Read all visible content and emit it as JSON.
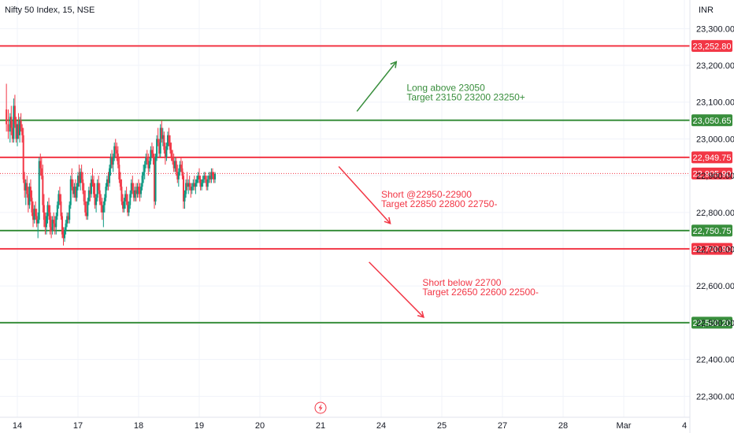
{
  "header": {
    "title": "Nifty 50 Index, 15, NSE",
    "currency": "INR"
  },
  "colors": {
    "up": "#089981",
    "down": "#f23645",
    "support": "#388e3c",
    "resistance": "#f23645",
    "background": "#ffffff",
    "grid": "#f0f3fa"
  },
  "event_icon": "lightning-bolt-icon",
  "chart_data": {
    "type": "candlestick",
    "title": "Nifty 50 Index, 15, NSE",
    "currency": "INR",
    "ylim": [
      22275,
      23335
    ],
    "y_ticks": [
      22300,
      22400,
      22500,
      22600,
      22700,
      22800,
      22900,
      23000,
      23100,
      23200,
      23300
    ],
    "y_tick_labels": [
      "22,300.00",
      "22,400.00",
      "22,500.00",
      "22,600.00",
      "22,700.00",
      "22,800.00",
      "22,900.00",
      "23,000.00",
      "23,100.00",
      "23,200.00",
      "23,300.00"
    ],
    "x_ticks": [
      {
        "label": "14",
        "pos": 0
      },
      {
        "label": "17",
        "pos": 1
      },
      {
        "label": "18",
        "pos": 2
      },
      {
        "label": "19",
        "pos": 3
      },
      {
        "label": "20",
        "pos": 4
      },
      {
        "label": "21",
        "pos": 5
      },
      {
        "label": "24",
        "pos": 6
      },
      {
        "label": "25",
        "pos": 7
      },
      {
        "label": "27",
        "pos": 8
      },
      {
        "label": "28",
        "pos": 9
      },
      {
        "label": "Mar",
        "pos": 10
      },
      {
        "label": "4",
        "pos": 11
      }
    ],
    "horizontal_levels": [
      {
        "value": 23252.8,
        "label": "23,252.80",
        "kind": "resistance"
      },
      {
        "value": 23050.65,
        "label": "23,050.65",
        "kind": "support"
      },
      {
        "value": 22949.75,
        "label": "22,949.75",
        "kind": "resistance"
      },
      {
        "value": 22750.75,
        "label": "22,750.75",
        "kind": "support"
      },
      {
        "value": 22700.9,
        "label": "22,700.90",
        "kind": "resistance"
      },
      {
        "value": 22500.2,
        "label": "22,500.20",
        "kind": "support"
      }
    ],
    "last_price": {
      "value": 22905.9,
      "label": "22,905.90"
    },
    "annotations": [
      {
        "lines": [
          "Long above 23050",
          "Target 23150 23200 23250+"
        ],
        "kind": "long",
        "arrow": {
          "from": [
            5.6,
            23075
          ],
          "to": [
            6.25,
            23210
          ]
        },
        "text_at": [
          6.42,
          23130
        ]
      },
      {
        "lines": [
          "Short @22950-22900",
          "Target 22850 22800 22750-"
        ],
        "kind": "short",
        "arrow": {
          "from": [
            5.3,
            22925
          ],
          "to": [
            6.15,
            22770
          ]
        },
        "text_at": [
          6.0,
          22840
        ]
      },
      {
        "lines": [
          "Short below 22700",
          "Target 22650 22600 22500-"
        ],
        "kind": "short",
        "arrow": {
          "from": [
            5.8,
            22665
          ],
          "to": [
            6.7,
            22515
          ]
        },
        "text_at": [
          6.68,
          22600
        ]
      }
    ],
    "candles": [
      [
        -0.18,
        23080,
        23150,
        23020,
        23040
      ],
      [
        -0.15,
        23040,
        23080,
        23000,
        23020
      ],
      [
        -0.12,
        23020,
        23070,
        22990,
        23060
      ],
      [
        -0.1,
        23060,
        23090,
        23010,
        23030
      ],
      [
        -0.08,
        23030,
        23050,
        22990,
        23000
      ],
      [
        -0.06,
        23000,
        23110,
        22990,
        23090
      ],
      [
        -0.04,
        23090,
        23120,
        23030,
        23040
      ],
      [
        -0.02,
        23040,
        23060,
        22990,
        23000
      ],
      [
        0.0,
        23000,
        23050,
        22980,
        23040
      ],
      [
        0.02,
        23040,
        23070,
        23000,
        23010
      ],
      [
        0.04,
        23010,
        23060,
        22990,
        23050
      ],
      [
        0.06,
        23050,
        23070,
        23020,
        23030
      ],
      [
        0.08,
        23030,
        23040,
        22990,
        23010
      ],
      [
        0.1,
        23010,
        23030,
        22880,
        22890
      ],
      [
        0.12,
        22890,
        22910,
        22840,
        22860
      ],
      [
        0.14,
        22860,
        22890,
        22820,
        22880
      ],
      [
        0.16,
        22880,
        22900,
        22840,
        22850
      ],
      [
        0.18,
        22850,
        22870,
        22800,
        22820
      ],
      [
        0.2,
        22820,
        22880,
        22810,
        22870
      ],
      [
        0.22,
        22870,
        22890,
        22830,
        22840
      ],
      [
        0.24,
        22840,
        22860,
        22790,
        22800
      ],
      [
        0.26,
        22800,
        22830,
        22760,
        22780
      ],
      [
        0.28,
        22780,
        22820,
        22770,
        22810
      ],
      [
        0.3,
        22810,
        22830,
        22780,
        22790
      ],
      [
        0.32,
        22790,
        22810,
        22760,
        22770
      ],
      [
        0.34,
        22770,
        22800,
        22730,
        22780
      ],
      [
        0.36,
        22780,
        22950,
        22770,
        22940
      ],
      [
        0.38,
        22940,
        22960,
        22900,
        22920
      ],
      [
        0.4,
        22920,
        22950,
        22890,
        22900
      ],
      [
        0.42,
        22900,
        22930,
        22800,
        22820
      ],
      [
        0.44,
        22820,
        22850,
        22760,
        22780
      ],
      [
        0.46,
        22780,
        22800,
        22740,
        22760
      ],
      [
        0.48,
        22760,
        22800,
        22740,
        22790
      ],
      [
        0.5,
        22790,
        22830,
        22770,
        22820
      ],
      [
        0.52,
        22820,
        22840,
        22780,
        22800
      ],
      [
        0.54,
        22800,
        22820,
        22740,
        22760
      ],
      [
        0.56,
        22760,
        22790,
        22730,
        22750
      ],
      [
        0.58,
        22750,
        22790,
        22740,
        22780
      ],
      [
        0.6,
        22780,
        22800,
        22750,
        22770
      ],
      [
        0.62,
        22770,
        22790,
        22740,
        22760
      ],
      [
        0.64,
        22760,
        22800,
        22740,
        22790
      ],
      [
        0.66,
        22790,
        22830,
        22780,
        22820
      ],
      [
        0.68,
        22820,
        22860,
        22810,
        22850
      ],
      [
        0.7,
        22850,
        22870,
        22820,
        22830
      ],
      [
        0.72,
        22830,
        22850,
        22780,
        22790
      ],
      [
        0.74,
        22790,
        22800,
        22730,
        22740
      ],
      [
        0.76,
        22740,
        22760,
        22710,
        22730
      ],
      [
        0.78,
        22730,
        22760,
        22720,
        22750
      ],
      [
        0.8,
        22750,
        22780,
        22740,
        22770
      ],
      [
        0.82,
        22770,
        22800,
        22760,
        22790
      ],
      [
        0.84,
        22790,
        22800,
        22770,
        22780
      ],
      [
        0.86,
        22780,
        22830,
        22770,
        22820
      ],
      [
        0.88,
        22820,
        22900,
        22810,
        22890
      ],
      [
        0.9,
        22890,
        22920,
        22860,
        22870
      ],
      [
        0.92,
        22870,
        22890,
        22840,
        22850
      ],
      [
        0.94,
        22850,
        22880,
        22840,
        22870
      ],
      [
        0.96,
        22870,
        22890,
        22830,
        22840
      ],
      [
        0.98,
        22840,
        22880,
        22830,
        22870
      ],
      [
        1.0,
        22870,
        22910,
        22860,
        22900
      ],
      [
        1.02,
        22900,
        22930,
        22870,
        22880
      ],
      [
        1.04,
        22880,
        22920,
        22860,
        22910
      ],
      [
        1.06,
        22910,
        22930,
        22880,
        22890
      ],
      [
        1.08,
        22890,
        22910,
        22850,
        22860
      ],
      [
        1.1,
        22860,
        22880,
        22820,
        22830
      ],
      [
        1.12,
        22830,
        22860,
        22790,
        22800
      ],
      [
        1.14,
        22800,
        22830,
        22780,
        22790
      ],
      [
        1.16,
        22790,
        22840,
        22780,
        22830
      ],
      [
        1.18,
        22830,
        22870,
        22820,
        22860
      ],
      [
        1.2,
        22860,
        22880,
        22830,
        22850
      ],
      [
        1.22,
        22850,
        22900,
        22840,
        22890
      ],
      [
        1.24,
        22890,
        22920,
        22870,
        22880
      ],
      [
        1.26,
        22880,
        22900,
        22840,
        22850
      ],
      [
        1.28,
        22850,
        22880,
        22810,
        22820
      ],
      [
        1.3,
        22820,
        22850,
        22800,
        22840
      ],
      [
        1.32,
        22840,
        22890,
        22830,
        22880
      ],
      [
        1.34,
        22880,
        22900,
        22850,
        22860
      ],
      [
        1.36,
        22860,
        22880,
        22820,
        22830
      ],
      [
        1.38,
        22830,
        22850,
        22800,
        22820
      ],
      [
        1.4,
        22820,
        22840,
        22780,
        22800
      ],
      [
        1.42,
        22800,
        22830,
        22760,
        22820
      ],
      [
        1.44,
        22820,
        22850,
        22800,
        22840
      ],
      [
        1.46,
        22840,
        22880,
        22830,
        22870
      ],
      [
        1.48,
        22870,
        22900,
        22860,
        22890
      ],
      [
        1.5,
        22890,
        22910,
        22860,
        22880
      ],
      [
        1.52,
        22880,
        22930,
        22870,
        22920
      ],
      [
        1.54,
        22920,
        22960,
        22900,
        22950
      ],
      [
        1.56,
        22950,
        22970,
        22920,
        22930
      ],
      [
        1.58,
        22930,
        22960,
        22910,
        22950
      ],
      [
        1.6,
        22950,
        22990,
        22940,
        22980
      ],
      [
        1.62,
        22980,
        23000,
        22950,
        22970
      ],
      [
        1.64,
        22970,
        22990,
        22940,
        22960
      ],
      [
        1.66,
        22960,
        22980,
        22920,
        22930
      ],
      [
        1.68,
        22930,
        22950,
        22880,
        22890
      ],
      [
        1.7,
        22890,
        22910,
        22860,
        22870
      ],
      [
        1.72,
        22870,
        22890,
        22820,
        22830
      ],
      [
        1.74,
        22830,
        22850,
        22800,
        22810
      ],
      [
        1.76,
        22810,
        22840,
        22800,
        22830
      ],
      [
        1.78,
        22830,
        22860,
        22810,
        22850
      ],
      [
        1.8,
        22850,
        22870,
        22820,
        22830
      ],
      [
        1.82,
        22830,
        22850,
        22790,
        22800
      ],
      [
        1.84,
        22800,
        22830,
        22790,
        22820
      ],
      [
        1.86,
        22820,
        22860,
        22810,
        22850
      ],
      [
        1.88,
        22850,
        22890,
        22840,
        22880
      ],
      [
        1.9,
        22880,
        22900,
        22850,
        22860
      ],
      [
        1.92,
        22860,
        22880,
        22830,
        22840
      ],
      [
        1.94,
        22840,
        22870,
        22830,
        22860
      ],
      [
        1.96,
        22860,
        22880,
        22830,
        22850
      ],
      [
        1.98,
        22850,
        22880,
        22840,
        22870
      ],
      [
        2.0,
        22870,
        22890,
        22840,
        22860
      ],
      [
        2.02,
        22860,
        22880,
        22830,
        22850
      ],
      [
        2.04,
        22850,
        22880,
        22840,
        22870
      ],
      [
        2.06,
        22870,
        22910,
        22860,
        22900
      ],
      [
        2.08,
        22900,
        22930,
        22880,
        22910
      ],
      [
        2.1,
        22910,
        22940,
        22890,
        22930
      ],
      [
        2.12,
        22930,
        22960,
        22920,
        22950
      ],
      [
        2.14,
        22950,
        22970,
        22930,
        22940
      ],
      [
        2.16,
        22940,
        22960,
        22900,
        22920
      ],
      [
        2.18,
        22920,
        22950,
        22910,
        22940
      ],
      [
        2.2,
        22940,
        22980,
        22930,
        22970
      ],
      [
        2.22,
        22970,
        22990,
        22950,
        22960
      ],
      [
        2.24,
        22960,
        22980,
        22930,
        22950
      ],
      [
        2.26,
        22950,
        22960,
        22810,
        22830
      ],
      [
        2.28,
        22830,
        22960,
        22820,
        22950
      ],
      [
        2.3,
        22950,
        23010,
        22940,
        23000
      ],
      [
        2.32,
        23000,
        23030,
        22980,
        22990
      ],
      [
        2.34,
        22990,
        23000,
        22950,
        22960
      ],
      [
        2.36,
        22960,
        23040,
        22950,
        23030
      ],
      [
        2.38,
        23030,
        23050,
        22990,
        23000
      ],
      [
        2.4,
        23000,
        23030,
        22980,
        23010
      ],
      [
        2.42,
        23010,
        23020,
        22960,
        22970
      ],
      [
        2.44,
        22970,
        22990,
        22930,
        22950
      ],
      [
        2.46,
        22950,
        22990,
        22940,
        22980
      ],
      [
        2.48,
        22980,
        23020,
        22970,
        23010
      ],
      [
        2.5,
        23010,
        23030,
        22980,
        22990
      ],
      [
        2.52,
        22990,
        23010,
        22960,
        22970
      ],
      [
        2.54,
        22970,
        22990,
        22940,
        22950
      ],
      [
        2.56,
        22950,
        22970,
        22930,
        22940
      ],
      [
        2.58,
        22940,
        22960,
        22910,
        22920
      ],
      [
        2.6,
        22920,
        22950,
        22910,
        22940
      ],
      [
        2.62,
        22940,
        22950,
        22900,
        22910
      ],
      [
        2.64,
        22910,
        22930,
        22880,
        22890
      ],
      [
        2.66,
        22890,
        22920,
        22870,
        22910
      ],
      [
        2.68,
        22910,
        22940,
        22900,
        22930
      ],
      [
        2.7,
        22930,
        22950,
        22910,
        22920
      ],
      [
        2.72,
        22920,
        22940,
        22890,
        22900
      ],
      [
        2.74,
        22900,
        22910,
        22810,
        22830
      ],
      [
        2.76,
        22830,
        22860,
        22810,
        22850
      ],
      [
        2.78,
        22850,
        22890,
        22840,
        22880
      ],
      [
        2.8,
        22880,
        22910,
        22860,
        22870
      ],
      [
        2.82,
        22870,
        22890,
        22850,
        22880
      ],
      [
        2.84,
        22880,
        22900,
        22860,
        22870
      ],
      [
        2.86,
        22870,
        22880,
        22840,
        22860
      ],
      [
        2.88,
        22860,
        22880,
        22850,
        22870
      ],
      [
        2.9,
        22870,
        22890,
        22860,
        22880
      ],
      [
        2.92,
        22880,
        22900,
        22860,
        22870
      ],
      [
        2.94,
        22870,
        22890,
        22850,
        22880
      ],
      [
        2.96,
        22880,
        22900,
        22870,
        22890
      ],
      [
        2.98,
        22890,
        22910,
        22880,
        22900
      ],
      [
        3.0,
        22900,
        22920,
        22880,
        22890
      ],
      [
        3.02,
        22890,
        22900,
        22860,
        22870
      ],
      [
        3.04,
        22870,
        22890,
        22860,
        22880
      ],
      [
        3.06,
        22880,
        22900,
        22870,
        22890
      ],
      [
        3.08,
        22890,
        22910,
        22880,
        22900
      ],
      [
        3.1,
        22900,
        22910,
        22880,
        22890
      ],
      [
        3.12,
        22890,
        22900,
        22860,
        22870
      ],
      [
        3.14,
        22870,
        22900,
        22860,
        22890
      ],
      [
        3.16,
        22890,
        22910,
        22880,
        22900
      ],
      [
        3.18,
        22900,
        22910,
        22880,
        22890
      ],
      [
        3.2,
        22890,
        22920,
        22880,
        22910
      ],
      [
        3.22,
        22910,
        22920,
        22890,
        22900
      ],
      [
        3.24,
        22900,
        22910,
        22880,
        22890
      ],
      [
        3.26,
        22890,
        22910,
        22880,
        22905
      ]
    ]
  }
}
